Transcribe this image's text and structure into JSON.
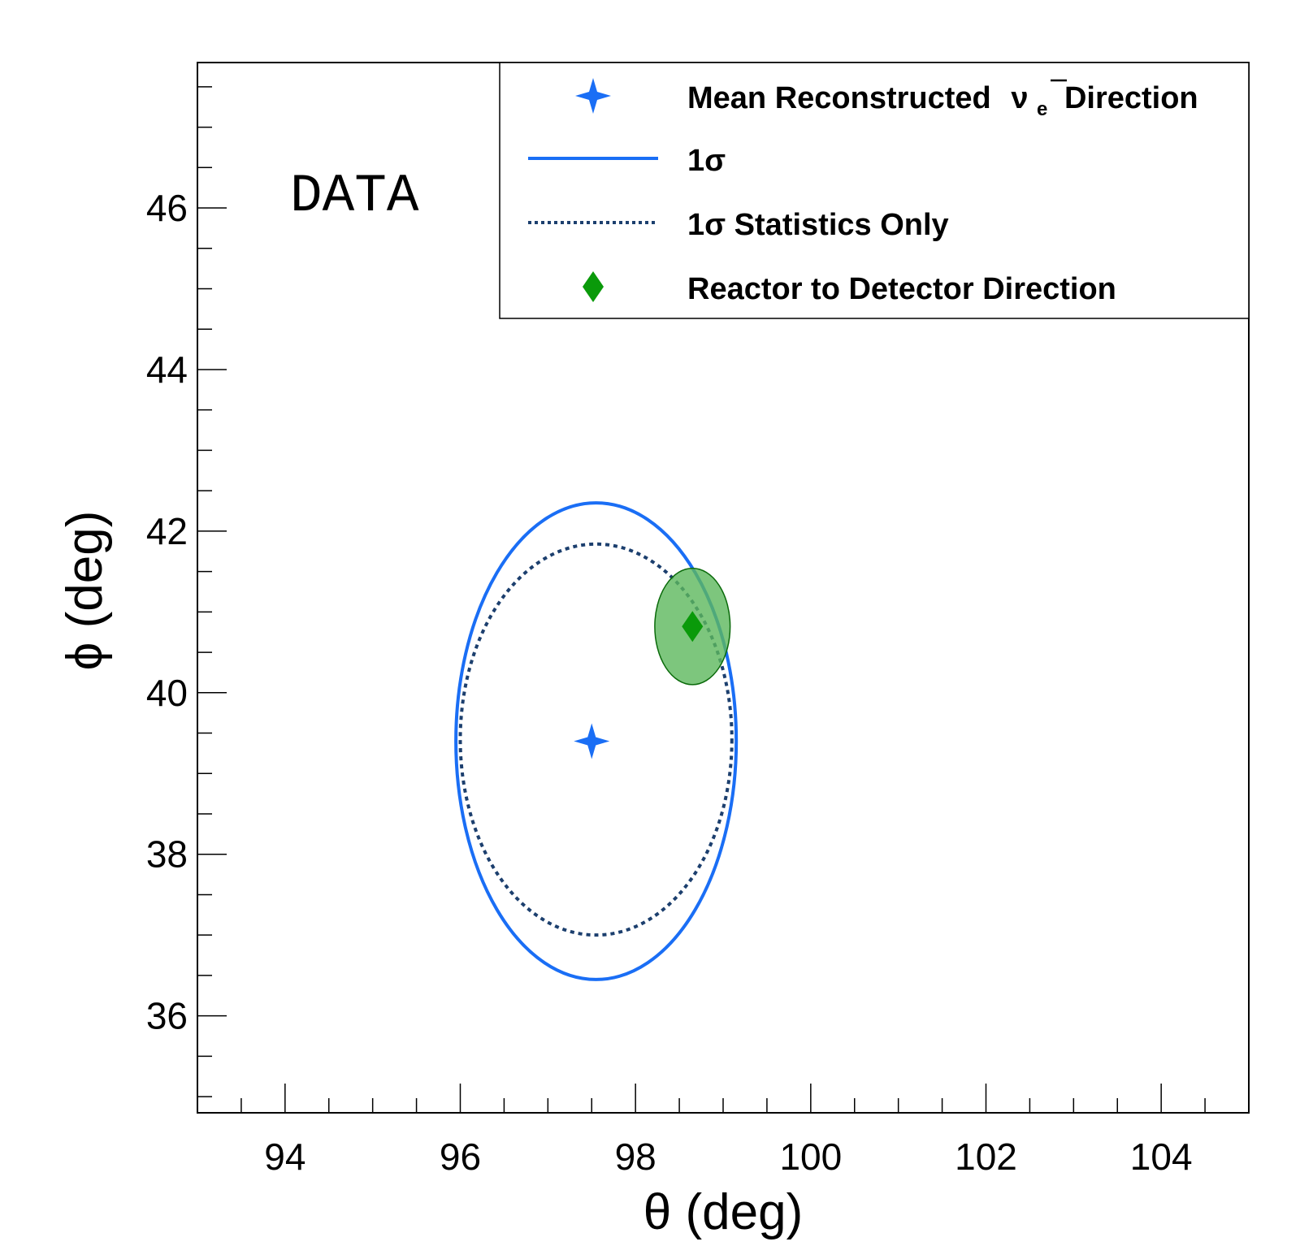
{
  "chart_data": {
    "type": "scatter",
    "xlabel": "θ (deg)",
    "ylabel": "ϕ (deg)",
    "xlim": [
      93,
      105
    ],
    "ylim": [
      34.8,
      47.8
    ],
    "x_ticks": [
      94,
      96,
      98,
      100,
      102,
      104
    ],
    "y_ticks": [
      36,
      38,
      40,
      42,
      44,
      46
    ],
    "x_tick_labels": [
      "94",
      "96",
      "98",
      "100",
      "102",
      "104"
    ],
    "y_tick_labels": [
      "36",
      "38",
      "40",
      "42",
      "44",
      "46"
    ],
    "annotation": "DATA",
    "legend_position": "top-right",
    "mean_direction": {
      "theta": 97.5,
      "phi": 39.4,
      "color": "#1a6ef5"
    },
    "reactor_direction": {
      "theta": 98.65,
      "phi": 40.82,
      "color": "#0a9a0a"
    },
    "reactor_uncertainty": {
      "theta": 98.65,
      "phi": 40.82,
      "theta_radius": 0.43,
      "phi_radius": 0.72,
      "fill": "#5cb85c"
    },
    "sigma1_contour": {
      "theta_center": 97.55,
      "phi_center": 39.4,
      "theta_radius": 1.6,
      "phi_radius": 2.95,
      "color": "#1a6ef5"
    },
    "sigma1_stat_contour": {
      "theta_center": 97.55,
      "phi_center": 39.42,
      "theta_radius": 1.55,
      "phi_radius": 2.42,
      "color": "#1c3f6e"
    },
    "legend": [
      {
        "label": "Mean Reconstructed",
        "nu": "ν",
        "sub": "e",
        "suffix": "Direction",
        "marker": "star"
      },
      {
        "label": "1σ",
        "marker": "solid-line"
      },
      {
        "label": "1σ Statistics Only",
        "marker": "dotted-line"
      },
      {
        "label": "Reactor to Detector Direction",
        "marker": "diamond"
      }
    ]
  }
}
